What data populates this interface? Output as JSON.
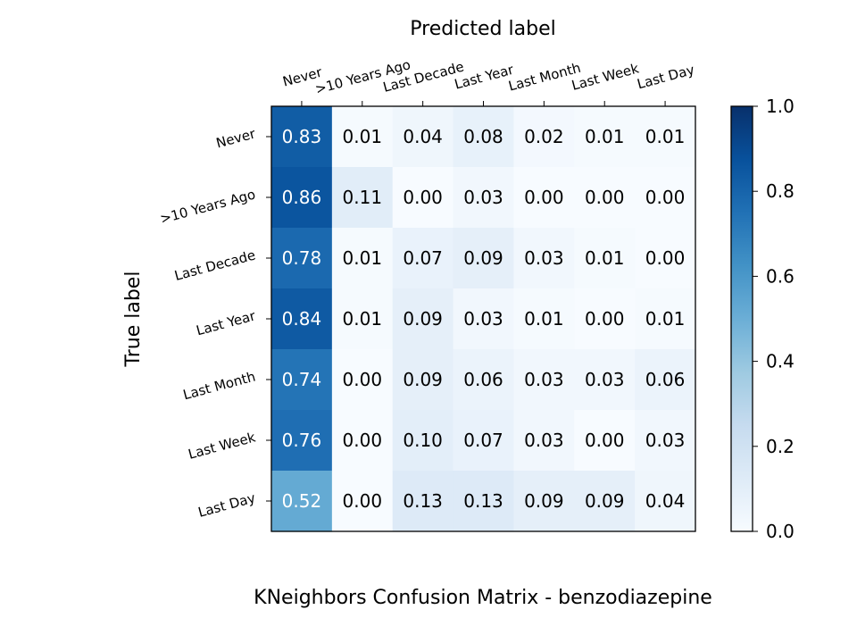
{
  "chart_data": {
    "type": "heatmap",
    "title": "KNeighbors Confusion Matrix - benzodiazepine",
    "xlabel": "Predicted label",
    "ylabel": "True label",
    "x_categories": [
      "Never",
      ">10 Years Ago",
      "Last Decade",
      "Last Year",
      "Last Month",
      "Last Week",
      "Last Day"
    ],
    "y_categories": [
      "Never",
      ">10 Years Ago",
      "Last Decade",
      "Last Year",
      "Last Month",
      "Last Week",
      "Last Day"
    ],
    "values": [
      [
        0.83,
        0.01,
        0.04,
        0.08,
        0.02,
        0.01,
        0.01
      ],
      [
        0.86,
        0.11,
        0.0,
        0.03,
        0.0,
        0.0,
        0.0
      ],
      [
        0.78,
        0.01,
        0.07,
        0.09,
        0.03,
        0.01,
        0.0
      ],
      [
        0.84,
        0.01,
        0.09,
        0.03,
        0.01,
        0.0,
        0.01
      ],
      [
        0.74,
        0.0,
        0.09,
        0.06,
        0.03,
        0.03,
        0.06
      ],
      [
        0.76,
        0.0,
        0.1,
        0.07,
        0.03,
        0.0,
        0.03
      ],
      [
        0.52,
        0.0,
        0.13,
        0.13,
        0.09,
        0.09,
        0.04
      ]
    ],
    "colorbar": {
      "range": [
        0.0,
        1.0
      ],
      "ticks": [
        "0.0",
        "0.2",
        "0.4",
        "0.6",
        "0.8",
        "1.0"
      ],
      "colormap": "Blues"
    },
    "x_axis_position": "top",
    "grid": false
  }
}
